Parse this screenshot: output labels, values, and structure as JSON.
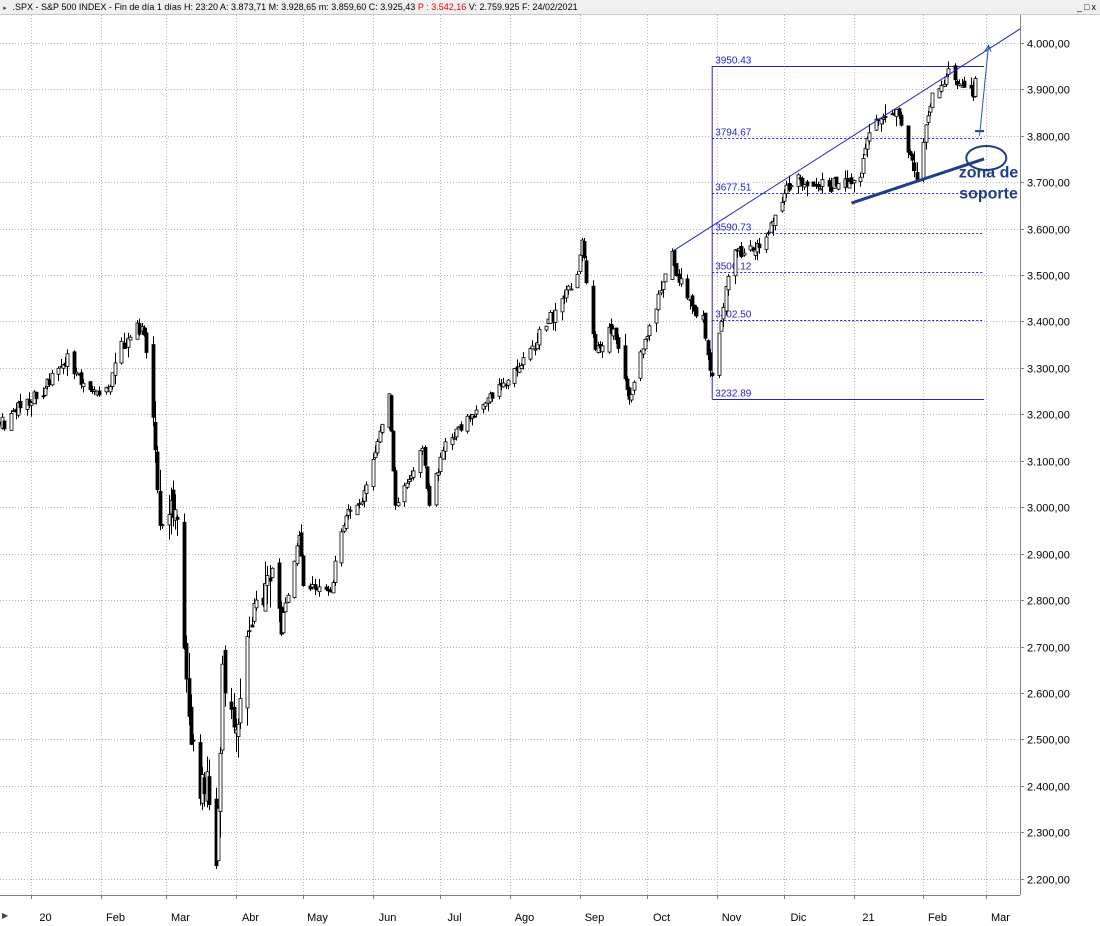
{
  "titlebar": {
    "symbol": ".SPX - S&P 500 INDEX - Fin de día 1 días",
    "h_label": "H:",
    "h_value": "23:20",
    "a_label": "A:",
    "a_value": "3.873,71",
    "m_label": "M:",
    "m_value": "3.928,65",
    "low_label": "m:",
    "low_value": "3.859,60",
    "c_label": "C:",
    "c_value": "3.925,43",
    "p_label": "P :",
    "p_value": "3.542,16",
    "v_label": "V:",
    "v_value": "2.759.925",
    "f_label": "F:",
    "f_value": "24/02/2021",
    "controls": [
      "_",
      "□",
      "x"
    ]
  },
  "chart_data": {
    "type": "candlestick",
    "title": "",
    "y_ticks": [
      "4.000,00",
      "3.900,00",
      "3.800,00",
      "3.700,00",
      "3.600,00",
      "3.500,00",
      "3.400,00",
      "3.300,00",
      "3.200,00",
      "3.100,00",
      "3.000,00",
      "2.900,00",
      "2.800,00",
      "2.700,00",
      "2.600,00",
      "2.500,00",
      "2.400,00",
      "2.300,00",
      "2.200,00"
    ],
    "y_tick_values": [
      4000,
      3900,
      3800,
      3700,
      3600,
      3500,
      3400,
      3300,
      3200,
      3100,
      3000,
      2900,
      2800,
      2700,
      2600,
      2500,
      2400,
      2300,
      2200
    ],
    "ylim": [
      2165,
      4060
    ],
    "x_ticks": [
      {
        "label": "20",
        "date": "2020-01-01"
      },
      {
        "label": "Feb",
        "date": "2020-02-01"
      },
      {
        "label": "Mar",
        "date": "2020-03-01"
      },
      {
        "label": "Abr",
        "date": "2020-04-01"
      },
      {
        "label": "May",
        "date": "2020-05-01"
      },
      {
        "label": "Jun",
        "date": "2020-06-01"
      },
      {
        "label": "Jul",
        "date": "2020-07-01"
      },
      {
        "label": "Ago",
        "date": "2020-08-01"
      },
      {
        "label": "Sep",
        "date": "2020-09-01"
      },
      {
        "label": "Oct",
        "date": "2020-10-01"
      },
      {
        "label": "Nov",
        "date": "2020-11-01"
      },
      {
        "label": "Dic",
        "date": "2020-12-01"
      },
      {
        "label": "21",
        "date": "2021-01-01"
      },
      {
        "label": "Feb",
        "date": "2021-02-01"
      },
      {
        "label": "Mar",
        "date": "2021-03-01"
      }
    ],
    "xlim": [
      "2019-12-18",
      "2021-03-16"
    ],
    "grid": true,
    "close_path": [
      [
        "2019-12-18",
        3180
      ],
      [
        "2020-01-03",
        3235
      ],
      [
        "2020-01-17",
        3320
      ],
      [
        "2020-01-27",
        3245
      ],
      [
        "2020-02-03",
        3250
      ],
      [
        "2020-02-11",
        3357
      ],
      [
        "2020-02-19",
        3386
      ],
      [
        "2020-02-21",
        3337
      ],
      [
        "2020-02-24",
        3225
      ],
      [
        "2020-02-27",
        2978
      ],
      [
        "2020-03-03",
        3003
      ],
      [
        "2020-03-06",
        2972
      ],
      [
        "2020-03-09",
        2745
      ],
      [
        "2020-03-12",
        2480
      ],
      [
        "2020-03-16",
        2385
      ],
      [
        "2020-03-19",
        2409
      ],
      [
        "2020-03-23",
        2237
      ],
      [
        "2020-03-26",
        2630
      ],
      [
        "2020-04-02",
        2527
      ],
      [
        "2020-04-09",
        2789
      ],
      [
        "2020-04-17",
        2874
      ],
      [
        "2020-04-21",
        2737
      ],
      [
        "2020-04-29",
        2940
      ],
      [
        "2020-05-01",
        2830
      ],
      [
        "2020-05-13",
        2820
      ],
      [
        "2020-05-18",
        2954
      ],
      [
        "2020-05-29",
        3044
      ],
      [
        "2020-06-08",
        3232
      ],
      [
        "2020-06-11",
        3002
      ],
      [
        "2020-06-23",
        3131
      ],
      [
        "2020-06-26",
        3009
      ],
      [
        "2020-07-02",
        3130
      ],
      [
        "2020-07-23",
        3236
      ],
      [
        "2020-07-31",
        3271
      ],
      [
        "2020-08-14",
        3372
      ],
      [
        "2020-08-31",
        3500
      ],
      [
        "2020-09-02",
        3580
      ],
      [
        "2020-09-08",
        3332
      ],
      [
        "2020-09-16",
        3385
      ],
      [
        "2020-09-23",
        3237
      ],
      [
        "2020-10-01",
        3380
      ],
      [
        "2020-10-12",
        3534
      ],
      [
        "2020-10-21",
        3435
      ],
      [
        "2020-10-26",
        3400
      ],
      [
        "2020-10-30",
        3270
      ],
      [
        "2020-11-06",
        3509
      ],
      [
        "2020-11-09",
        3550
      ],
      [
        "2020-11-20",
        3557
      ],
      [
        "2020-12-04",
        3699
      ],
      [
        "2020-12-21",
        3694
      ],
      [
        "2021-01-04",
        3700
      ],
      [
        "2021-01-08",
        3824
      ],
      [
        "2021-01-20",
        3851
      ],
      [
        "2021-01-29",
        3714
      ],
      [
        "2021-02-05",
        3886
      ],
      [
        "2021-02-12",
        3934
      ],
      [
        "2021-02-19",
        3906
      ],
      [
        "2021-02-23",
        3881
      ],
      [
        "2021-02-24",
        3925
      ]
    ],
    "fibonacci": {
      "x_start": "2020-10-30",
      "x_end": "2021-02-28",
      "high": 3950.43,
      "low": 3232.89,
      "levels": [
        {
          "value": 3950.43,
          "label": "3950.43",
          "style": "solid"
        },
        {
          "value": 3794.67,
          "label": "3794.67",
          "style": "dotted"
        },
        {
          "value": 3677.51,
          "label": "3677.51",
          "style": "dotted"
        },
        {
          "value": 3590.73,
          "label": "3590.73",
          "style": "dotted"
        },
        {
          "value": 3506.12,
          "label": "3506.12",
          "style": "dotted"
        },
        {
          "value": 3402.5,
          "label": "3402.50",
          "style": "dotted"
        },
        {
          "value": 3232.89,
          "label": "3232.89",
          "style": "solid"
        }
      ],
      "color": "#2222cc"
    },
    "trendline_upper": {
      "start": [
        "2020-10-12",
        3550
      ],
      "end": [
        "2021-03-16",
        4030
      ],
      "color": "#2222cc"
    },
    "trendline_lower": {
      "start": [
        "2020-12-31",
        3655
      ],
      "end": [
        "2021-02-28",
        3750
      ],
      "color": "#1f3d8a"
    },
    "support_segment": {
      "start": [
        "2021-02-24",
        3810
      ],
      "end": [
        "2021-02-28",
        3810
      ],
      "color": "#1f3d8a"
    },
    "support_ellipse": {
      "center": [
        "2021-03-01",
        3752
      ],
      "color": "#1f3d8a"
    },
    "projection_arrow": {
      "start": [
        "2021-02-26",
        3800
      ],
      "end": [
        "2021-03-02",
        3995
      ],
      "color": "#2255bb"
    },
    "annotation": {
      "lines": [
        "zona de",
        "soporte"
      ],
      "anchor": [
        "2021-03-02",
        3710
      ],
      "color": "#1f3d8a"
    }
  }
}
